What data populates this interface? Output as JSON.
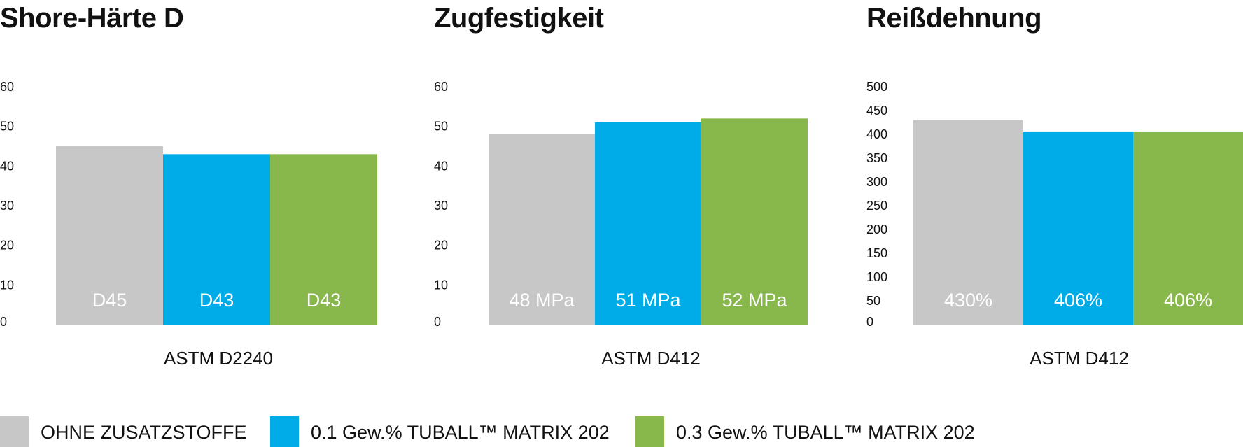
{
  "colors": {
    "grey": "#c6c7c6",
    "blue": "#00ace8",
    "green": "#88b84b",
    "text": "#111111",
    "bar_label": "#ffffff"
  },
  "legend": [
    {
      "label": "OHNE ZUSATZSTOFFE",
      "color": "#c6c7c6"
    },
    {
      "label": "0.1 Gew.% TUBALL™ MATRIX 202",
      "color": "#00ace8"
    },
    {
      "label": "0.3 Gew.% TUBALL™ MATRIX 202",
      "color": "#88b84b"
    }
  ],
  "chart_data": [
    {
      "type": "bar",
      "title": "Shore-Härte D",
      "xlabel": "ASTM D2240",
      "ylim": [
        0,
        60
      ],
      "yticks": [
        0,
        10,
        20,
        30,
        40,
        50,
        60
      ],
      "grid": false,
      "categories": [
        "OHNE ZUSATZSTOFFE",
        "0.1 Gew.% TUBALL™ MATRIX 202",
        "0.3 Gew.% TUBALL™ MATRIX 202"
      ],
      "values": [
        45,
        43,
        43
      ],
      "data_labels": [
        "D45",
        "D43",
        "D43"
      ]
    },
    {
      "type": "bar",
      "title": "Zugfestigkeit",
      "xlabel": "ASTM D412",
      "ylim": [
        0,
        60
      ],
      "yticks": [
        0,
        10,
        20,
        30,
        40,
        50,
        60
      ],
      "grid": false,
      "categories": [
        "OHNE ZUSATZSTOFFE",
        "0.1 Gew.% TUBALL™ MATRIX 202",
        "0.3 Gew.% TUBALL™ MATRIX 202"
      ],
      "values": [
        48,
        51,
        52
      ],
      "data_labels": [
        "48 MPa",
        "51 MPa",
        "52 MPa"
      ]
    },
    {
      "type": "bar",
      "title": "Reißdehnung",
      "xlabel": "ASTM D412",
      "ylim": [
        0,
        500
      ],
      "yticks": [
        0,
        50,
        100,
        150,
        200,
        250,
        300,
        350,
        400,
        450,
        500
      ],
      "grid": false,
      "categories": [
        "OHNE ZUSATZSTOFFE",
        "0.1 Gew.% TUBALL™ MATRIX 202",
        "0.3 Gew.% TUBALL™ MATRIX 202"
      ],
      "values": [
        430,
        406,
        406
      ],
      "data_labels": [
        "430%",
        "406%",
        "406%"
      ]
    }
  ]
}
